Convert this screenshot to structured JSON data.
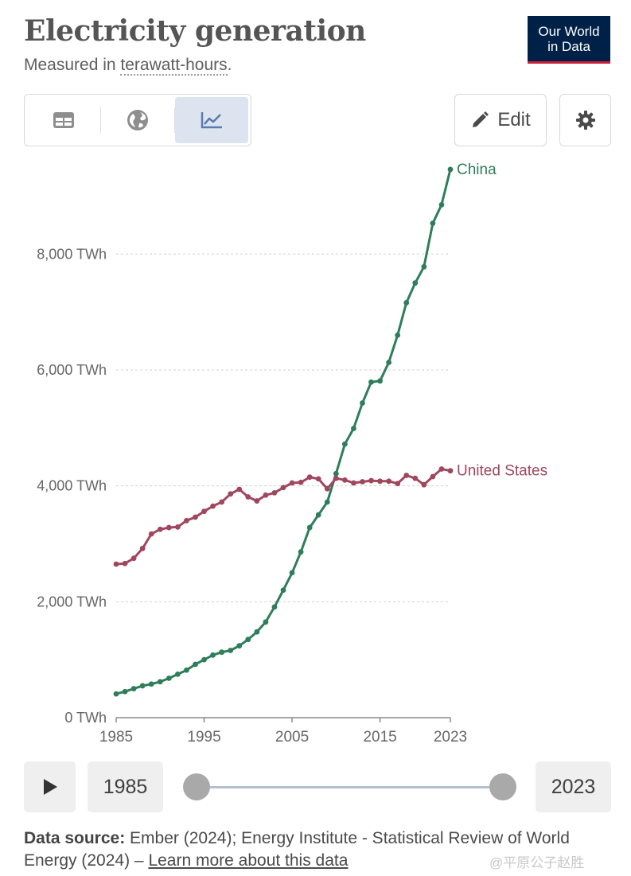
{
  "header": {
    "title": "Electricity generation",
    "subtitle_prefix": "Measured in ",
    "subtitle_unit": "terawatt-hours",
    "subtitle_suffix": ".",
    "logo_line1": "Our World",
    "logo_line2": "in Data"
  },
  "toolbar": {
    "tabs": [
      {
        "name": "table",
        "icon": "table-icon"
      },
      {
        "name": "map",
        "icon": "globe-icon"
      },
      {
        "name": "chart",
        "icon": "line-chart-icon",
        "active": true
      }
    ],
    "edit_label": "Edit",
    "settings_icon": "gear-icon"
  },
  "chart_data": {
    "type": "line",
    "title": "Electricity generation",
    "ylabel": "TWh",
    "ylim": [
      0,
      9500
    ],
    "yticks": [
      {
        "value": 0,
        "label": "0 TWh"
      },
      {
        "value": 2000,
        "label": "2,000 TWh"
      },
      {
        "value": 4000,
        "label": "4,000 TWh"
      },
      {
        "value": 6000,
        "label": "6,000 TWh"
      },
      {
        "value": 8000,
        "label": "8,000 TWh"
      }
    ],
    "xlim": [
      1985,
      2023
    ],
    "xticks": [
      {
        "value": 1985,
        "label": "1985"
      },
      {
        "value": 1995,
        "label": "1995"
      },
      {
        "value": 2005,
        "label": "2005"
      },
      {
        "value": 2015,
        "label": "2015"
      },
      {
        "value": 2023,
        "label": "2023"
      }
    ],
    "x": [
      1985,
      1986,
      1987,
      1988,
      1989,
      1990,
      1991,
      1992,
      1993,
      1994,
      1995,
      1996,
      1997,
      1998,
      1999,
      2000,
      2001,
      2002,
      2003,
      2004,
      2005,
      2006,
      2007,
      2008,
      2009,
      2010,
      2011,
      2012,
      2013,
      2014,
      2015,
      2016,
      2017,
      2018,
      2019,
      2020,
      2021,
      2022,
      2023
    ],
    "series": [
      {
        "name": "China",
        "color": "#2e7d5b",
        "values": [
          410,
          450,
          500,
          550,
          580,
          620,
          680,
          750,
          820,
          920,
          1000,
          1080,
          1130,
          1160,
          1240,
          1350,
          1480,
          1650,
          1910,
          2200,
          2500,
          2860,
          3280,
          3500,
          3720,
          4210,
          4720,
          4990,
          5430,
          5790,
          5810,
          6130,
          6600,
          7160,
          7500,
          7780,
          8530,
          8850,
          9460
        ]
      },
      {
        "name": "United States",
        "color": "#a0475f",
        "values": [
          2650,
          2660,
          2750,
          2920,
          3170,
          3250,
          3280,
          3290,
          3400,
          3460,
          3560,
          3650,
          3720,
          3860,
          3940,
          3810,
          3740,
          3840,
          3880,
          3970,
          4050,
          4060,
          4150,
          4120,
          3950,
          4130,
          4100,
          4050,
          4070,
          4090,
          4080,
          4080,
          4040,
          4180,
          4130,
          4020,
          4160,
          4290,
          4260
        ]
      }
    ]
  },
  "timeline": {
    "start_year": "1985",
    "end_year": "2023",
    "play_icon": "play-icon"
  },
  "source": {
    "label": "Data source:",
    "text": " Ember (2024); Energy Institute - Statistical Review of World Energy (2024) – ",
    "link": "Learn more about this data"
  },
  "watermark": "@平原公子赵胜"
}
